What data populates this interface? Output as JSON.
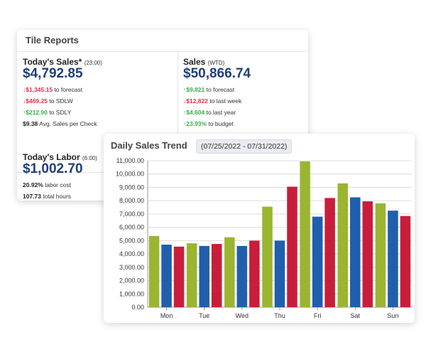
{
  "tile_reports": {
    "header": "Tile Reports",
    "todays_sales": {
      "title": "Today's Sales*",
      "time": "(23:00)",
      "value": "$4,792.85",
      "metrics": [
        {
          "arrow": "↓",
          "amount": "$1,345.15",
          "text": "to forecast",
          "color": "#e0304a"
        },
        {
          "arrow": "↓",
          "amount": "$469.25",
          "text": "to SDLW",
          "color": "#e0304a"
        },
        {
          "arrow": "↑",
          "amount": "$212.90",
          "text": "to SDLY",
          "color": "#38b24a"
        },
        {
          "arrow": "",
          "amount": "$9.38",
          "text": "Avg. Sales per Check",
          "color": "#222222"
        }
      ]
    },
    "sales_wtd": {
      "title": "Sales",
      "period": "(WTD)",
      "value": "$50,866.74",
      "metrics": [
        {
          "arrow": "↑",
          "amount": "$9,821",
          "text": "to forecast",
          "color": "#38b24a"
        },
        {
          "arrow": "↓",
          "amount": "$12,822",
          "text": "to last week",
          "color": "#e0304a"
        },
        {
          "arrow": "↑",
          "amount": "$4,604",
          "text": "to last year",
          "color": "#38b24a"
        },
        {
          "arrow": "↑",
          "amount": "23.93%",
          "text": "to budget",
          "color": "#38b24a"
        }
      ]
    },
    "todays_labor": {
      "title": "Today's Labor",
      "time": "(6:00)",
      "value": "$1,002.70",
      "metrics": [
        {
          "arrow": "",
          "amount": "20.92%",
          "text": "labor cost",
          "color": "#222222"
        },
        {
          "arrow": "",
          "amount": "107.73",
          "text": "total hours",
          "color": "#222222"
        }
      ]
    }
  },
  "daily_sales_trend": {
    "title": "Daily Sales Trend",
    "date_range": "(07/25/2022 - 07/31/2022)"
  },
  "chart_data": {
    "type": "bar",
    "categories": [
      "Mon",
      "Tue",
      "Wed",
      "Thu",
      "Fri",
      "Sat",
      "Sun"
    ],
    "series": [
      {
        "color": "#9bb531",
        "values": [
          5350,
          4800,
          5250,
          7550,
          10950,
          9300,
          7800
        ]
      },
      {
        "color": "#1f5fad",
        "values": [
          4700,
          4600,
          4600,
          5000,
          6800,
          8250,
          7250
        ]
      },
      {
        "color": "#c81e3a",
        "values": [
          4550,
          4750,
          5000,
          9050,
          8200,
          7950,
          6850
        ]
      }
    ],
    "ylim": [
      0,
      11000
    ],
    "y_ticks": [
      "0.00",
      "1,000.00",
      "2,000.00",
      "3,000.00",
      "4,000.00",
      "5,000.00",
      "6,000.00",
      "7,000.00",
      "8,000.00",
      "9,000.00",
      "10,000.00",
      "11,000.00"
    ],
    "grid": true,
    "xlabel": "",
    "ylabel": ""
  }
}
